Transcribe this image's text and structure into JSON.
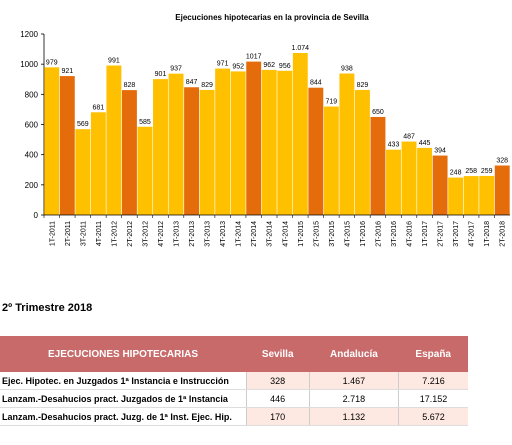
{
  "chart_data": {
    "type": "bar",
    "title": "Ejecuciones hipotecarias en la provincia de Sevilla",
    "categories": [
      "1T-2011",
      "2T-2011",
      "3T-2011",
      "4T-2011",
      "1T-2012",
      "2T-2012",
      "3T-2012",
      "4T-2012",
      "1T-2013",
      "2T-2013",
      "3T-2013",
      "4T-2013",
      "1T-2014",
      "2T-2014",
      "3T-2014",
      "4T-2014",
      "1T-2015",
      "2T-2015",
      "3T-2015",
      "4T-2015",
      "1T-2016",
      "2T-2016",
      "3T-2016",
      "4T-2016",
      "1T-2017",
      "2T-2017",
      "3T-2017",
      "4T-2017",
      "1T-2018",
      "2T-2018"
    ],
    "values": [
      979,
      921,
      569,
      681,
      991,
      828,
      585,
      901,
      937,
      847,
      829,
      971,
      952,
      1017,
      962,
      956,
      1074,
      844,
      719,
      938,
      829,
      650,
      433,
      487,
      445,
      394,
      248,
      258,
      259,
      328
    ],
    "value_labels": [
      "979",
      "921",
      "569",
      "681",
      "991",
      "828",
      "585",
      "901",
      "937",
      "847",
      "829",
      "971",
      "952",
      "1017",
      "962",
      "956",
      "1.074",
      "844",
      "719",
      "938",
      "829",
      "650",
      "433",
      "487",
      "445",
      "394",
      "248",
      "258",
      "259",
      "328"
    ],
    "highlighted": [
      "2T-2011",
      "2T-2012",
      "2T-2013",
      "2T-2014",
      "2T-2015",
      "2T-2016",
      "2T-2017",
      "2T-2018"
    ],
    "ylim": [
      0,
      1200
    ],
    "yticks": [
      0,
      200,
      400,
      600,
      800,
      1000,
      1200
    ],
    "grid": false,
    "colors": {
      "default": "#ffc000",
      "highlight": "#e46c0a",
      "axis": "#000000"
    },
    "xlabel": "",
    "ylabel": ""
  },
  "section_title": "2º Trimestre 2018",
  "table": {
    "headers": [
      "EJECUCIONES HIPOTECARIAS",
      "Sevilla",
      "Andalucía",
      "España"
    ],
    "rows": [
      {
        "label": "Ejec. Hipotec. en Juzgados 1ª Instancia e Instrucción",
        "values": [
          "328",
          "1.467",
          "7.216"
        ]
      },
      {
        "label": "Lanzam.-Desahucios pract. Juzgados de 1ª Instancia",
        "values": [
          "446",
          "2.718",
          "17.152"
        ]
      },
      {
        "label": "Lanzam.-Desahucios pract. Juzg. de 1ª Inst. Ejec. Hip.",
        "values": [
          "170",
          "1.132",
          "5.672"
        ]
      }
    ],
    "header_color": "#c96a6a"
  }
}
